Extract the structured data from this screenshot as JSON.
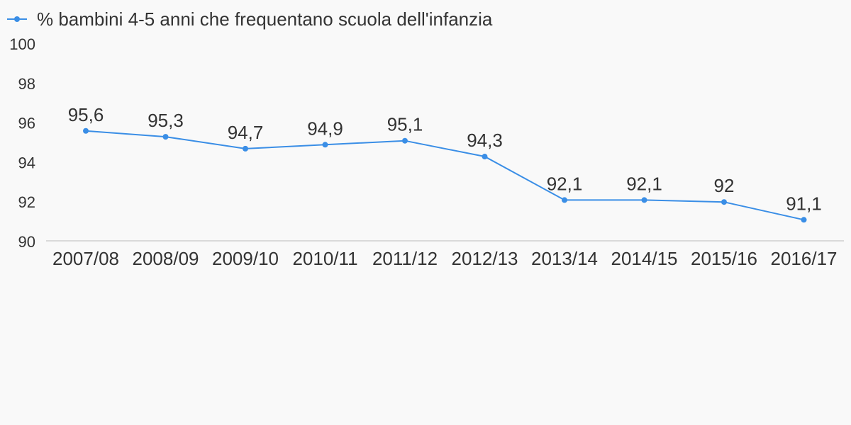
{
  "chart_data": {
    "type": "line",
    "categories": [
      "2007/08",
      "2008/09",
      "2009/10",
      "2010/11",
      "2011/12",
      "2012/13",
      "2013/14",
      "2014/15",
      "2015/16",
      "2016/17"
    ],
    "series": [
      {
        "name": "% bambini 4-5 anni che frequentano scuola dell'infanzia",
        "values": [
          95.6,
          95.3,
          94.7,
          94.9,
          95.1,
          94.3,
          92.1,
          92.1,
          92,
          91.1
        ],
        "labels": [
          "95,6",
          "95,3",
          "94,7",
          "94,9",
          "95,1",
          "94,3",
          "92,1",
          "92,1",
          "92",
          "91,1"
        ]
      }
    ],
    "ylim": [
      90,
      100
    ],
    "yticks": [
      "90",
      "92",
      "94",
      "96",
      "98",
      "100"
    ],
    "yticks_values": [
      90,
      92,
      94,
      96,
      98,
      100
    ],
    "grid": false,
    "legend_position": "top-left",
    "colors": {
      "line": "#3a8ee6",
      "axis": "#d9d9d9",
      "text": "#333333",
      "background": "#f9f9f9"
    }
  }
}
